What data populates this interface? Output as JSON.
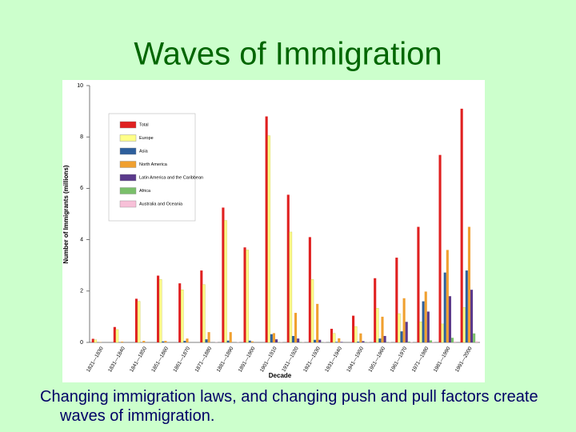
{
  "chart_data": {
    "type": "bar",
    "title": "Waves of Immigration",
    "caption": "Changing immigration laws, and changing push and pull factors create waves of immigration.",
    "ylabel": "Number of Immigrants (millions)",
    "xlabel": "Decade",
    "categories": [
      "1821—1830",
      "1831—1840",
      "1841—1850",
      "1851—1860",
      "1861—1870",
      "1871—1880",
      "1881—1890",
      "1891—1900",
      "1901—1910",
      "1911—1920",
      "1921—1930",
      "1931—1940",
      "1941—1950",
      "1951—1960",
      "1961—1970",
      "1971—1980",
      "1981—1990",
      "1991—2000"
    ],
    "series": [
      {
        "name": "Total",
        "color": "#e02020",
        "values": [
          0.14,
          0.6,
          1.7,
          2.6,
          2.3,
          2.8,
          5.25,
          3.7,
          8.8,
          5.75,
          4.1,
          0.53,
          1.04,
          2.5,
          3.3,
          4.5,
          7.3,
          9.1
        ]
      },
      {
        "name": "Europe",
        "color": "#ffff88",
        "values": [
          0.1,
          0.5,
          1.6,
          2.45,
          2.05,
          2.25,
          4.75,
          3.6,
          8.05,
          4.3,
          2.45,
          0.35,
          0.62,
          1.33,
          1.12,
          0.8,
          0.72,
          1.36
        ]
      },
      {
        "name": "Asia",
        "color": "#2e5f9c",
        "values": [
          0,
          0,
          0,
          0.04,
          0.06,
          0.12,
          0.07,
          0.07,
          0.32,
          0.25,
          0.1,
          0.02,
          0.03,
          0.15,
          0.43,
          1.6,
          2.72,
          2.8
        ]
      },
      {
        "name": "North America",
        "color": "#f0a030",
        "values": [
          0.01,
          0.03,
          0.06,
          0.06,
          0.15,
          0.4,
          0.4,
          0.04,
          0.36,
          1.15,
          1.5,
          0.16,
          0.35,
          1.0,
          1.72,
          1.98,
          3.6,
          4.5
        ]
      },
      {
        "name": "Latin America and the Caribbean",
        "color": "#5b3a8c",
        "values": [
          0,
          0,
          0,
          0,
          0,
          0,
          0,
          0,
          0.12,
          0.15,
          0.1,
          0.02,
          0.05,
          0.25,
          0.8,
          1.2,
          1.8,
          2.05
        ]
      },
      {
        "name": "Africa",
        "color": "#7abf6a",
        "values": [
          0,
          0,
          0,
          0,
          0,
          0,
          0,
          0,
          0.01,
          0.01,
          0.01,
          0,
          0.01,
          0.01,
          0.03,
          0.08,
          0.18,
          0.35
        ]
      },
      {
        "name": "Australia and Oceania",
        "color": "#f8c0d8",
        "values": [
          0,
          0,
          0,
          0,
          0,
          0.01,
          0.01,
          0,
          0.01,
          0.01,
          0.01,
          0,
          0.01,
          0.01,
          0.02,
          0.03,
          0.04,
          0.05
        ]
      }
    ],
    "ylim": [
      0,
      10
    ],
    "yticks": [
      0,
      2,
      4,
      6,
      8,
      10
    ]
  }
}
